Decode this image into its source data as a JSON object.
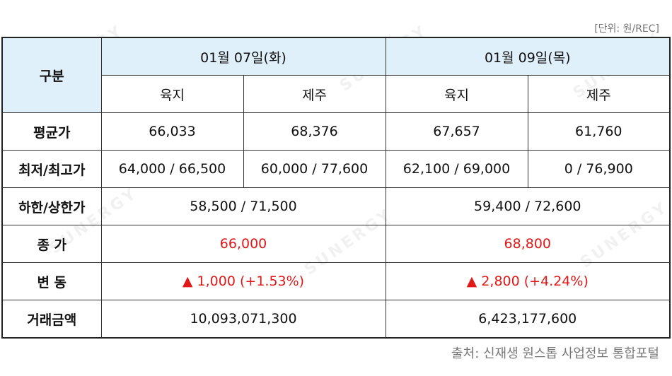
{
  "unit_label": "[단위: 원/REC]",
  "source_label": "출처: 신재생 원스톱 사업정보 통합포털",
  "watermark": "SUNERGY",
  "colors": {
    "header_bg": "#dff0fb",
    "highlight": "#e01818"
  },
  "table": {
    "corner_label": "구분",
    "dates": [
      "01월 07일(화)",
      "01월 09일(목)"
    ],
    "regions": [
      "육지",
      "제주",
      "육지",
      "제주"
    ],
    "rows": {
      "avg": {
        "label": "평균가",
        "values": [
          "66,033",
          "68,376",
          "67,657",
          "61,760"
        ]
      },
      "minmax": {
        "label": "최저/최고가",
        "values": [
          "64,000 / 66,500",
          "60,000 / 77,600",
          "62,100 / 69,000",
          "0 / 76,900"
        ]
      },
      "limits": {
        "label": "하한/상한가",
        "values": [
          "58,500 / 71,500",
          "59,400 / 72,600"
        ]
      },
      "close": {
        "label": "종 가",
        "values": [
          "66,000",
          "68,800"
        ]
      },
      "change": {
        "label": "변 동",
        "values": [
          "▲ 1,000 (+1.53%)",
          "▲ 2,800 (+4.24%)"
        ]
      },
      "amount": {
        "label": "거래금액",
        "values": [
          "10,093,071,300",
          "6,423,177,600"
        ]
      }
    }
  }
}
